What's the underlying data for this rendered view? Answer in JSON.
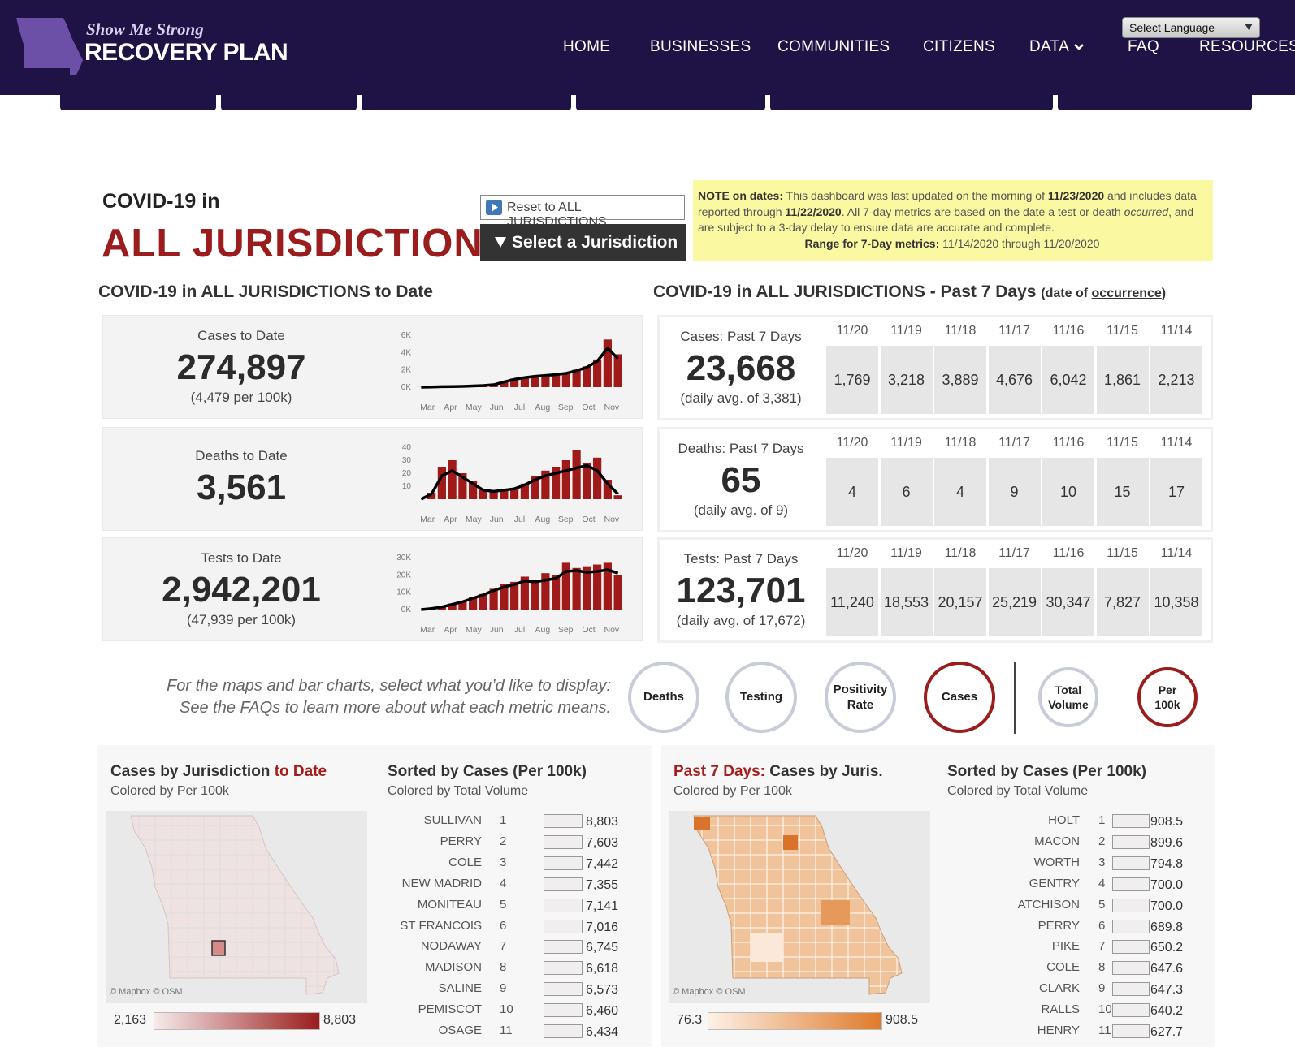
{
  "header": {
    "logo_script": "Show Me Strong",
    "logo_title": "RECOVERY PLAN",
    "nav": [
      "HOME",
      "BUSINESSES",
      "COMMUNITIES",
      "CITIZENS",
      "DATA",
      "FAQ",
      "RESOURCES"
    ],
    "language": "Select Language"
  },
  "title": {
    "prefix": "COVID-19 in",
    "name": "ALL JURISDICTIONS",
    "reset": "Reset to ALL JURISDICTIONS",
    "select": "Select a Jurisdiction"
  },
  "note": {
    "label": "NOTE on dates:",
    "text1": "This dashboard was last updated on the morning of",
    "date1": "11/23/2020",
    "text2": "and includes data reported through",
    "date2": "11/22/2020",
    "text3": ". All 7-day metrics are based on the date a test or death",
    "italic": "occurred",
    "text4": ", and are subject to a 3-day delay to ensure data are accurate and complete.",
    "range_label": "Range for 7-Day metrics:",
    "range": "11/14/2020 through 11/20/2020"
  },
  "to_date": {
    "heading": "COVID-19 in ALL JURISDICTIONS to Date",
    "cards": [
      {
        "label": "Cases to Date",
        "value": "274,897",
        "sub": "(4,479 per 100k)",
        "chart": {
          "type": "bar",
          "x_labels": [
            "Mar",
            "Apr",
            "May",
            "Jun",
            "Jul",
            "Aug",
            "Sep",
            "Oct",
            "Nov"
          ],
          "ylim": [
            0,
            6000
          ],
          "yticks": [
            {
              "value": 0,
              "label": "0K"
            },
            {
              "value": 2000,
              "label": "2K"
            },
            {
              "value": 4000,
              "label": "4K"
            },
            {
              "value": 6000,
              "label": "6K"
            }
          ],
          "values": [
            10,
            30,
            60,
            80,
            100,
            150,
            200,
            300,
            700,
            1000,
            1200,
            1300,
            1400,
            1500,
            1700,
            2000,
            2400,
            3200,
            5500,
            3800
          ],
          "average": [
            5,
            25,
            55,
            75,
            95,
            140,
            190,
            280,
            600,
            900,
            1100,
            1250,
            1350,
            1450,
            1600,
            1900,
            2300,
            3000,
            4500,
            3300
          ]
        }
      },
      {
        "label": "Deaths to Date",
        "value": "3,561",
        "chart": {
          "type": "bar",
          "x_labels": [
            "Mar",
            "Apr",
            "May",
            "Jun",
            "Jul",
            "Aug",
            "Sep",
            "Oct",
            "Nov"
          ],
          "ylim": [
            0,
            40
          ],
          "yticks": [
            10,
            20,
            30,
            40
          ],
          "values": [
            0,
            5,
            25,
            30,
            20,
            14,
            8,
            6,
            7,
            8,
            12,
            18,
            22,
            25,
            30,
            38,
            28,
            32,
            15,
            3
          ],
          "average": [
            0,
            4,
            18,
            22,
            17,
            12,
            7,
            6,
            7,
            8,
            11,
            15,
            18,
            20,
            22,
            24,
            26,
            22,
            12,
            4
          ]
        }
      },
      {
        "label": "Tests to Date",
        "value": "2,942,201",
        "sub": "(47,939 per 100k)",
        "chart": {
          "type": "bar",
          "x_labels": [
            "Mar",
            "Apr",
            "May",
            "Jun",
            "Jul",
            "Aug",
            "Sep",
            "Oct",
            "Nov"
          ],
          "ylim": [
            0,
            30000
          ],
          "yticks": [
            {
              "value": 0,
              "label": "0K"
            },
            {
              "value": 10000,
              "label": "10K"
            },
            {
              "value": 20000,
              "label": "20K"
            },
            {
              "value": 30000,
              "label": "30K"
            }
          ],
          "values": [
            0,
            800,
            2000,
            3500,
            5000,
            7000,
            9000,
            12000,
            15000,
            16000,
            19000,
            17000,
            21000,
            20000,
            27000,
            24000,
            25000,
            26000,
            27000,
            20000
          ],
          "average": [
            0,
            600,
            1500,
            3000,
            4500,
            6500,
            8500,
            11000,
            13000,
            14500,
            16500,
            16000,
            17000,
            18000,
            22000,
            22500,
            21500,
            22000,
            23000,
            21000
          ]
        }
      }
    ]
  },
  "past_7": {
    "heading": "COVID-19 in ALL JURISDICTIONS - Past 7 Days",
    "note_prefix": "(date of",
    "note_link": "occurrence",
    "note_suffix": ")",
    "cards": [
      {
        "label": "Cases: Past 7 Days",
        "value": "23,668",
        "sub": "(daily avg. of 3,381)",
        "dates": [
          "11/20",
          "11/19",
          "11/18",
          "11/17",
          "11/16",
          "11/15",
          "11/14"
        ],
        "values": [
          "1,769",
          "3,218",
          "3,889",
          "4,676",
          "6,042",
          "1,861",
          "2,213"
        ]
      },
      {
        "label": "Deaths: Past 7 Days",
        "value": "65",
        "sub": "(daily avg. of 9)",
        "dates": [
          "11/20",
          "11/19",
          "11/18",
          "11/17",
          "11/16",
          "11/15",
          "11/14"
        ],
        "values": [
          "4",
          "6",
          "4",
          "9",
          "10",
          "15",
          "17"
        ]
      },
      {
        "label": "Tests: Past 7 Days",
        "value": "123,701",
        "sub": "(daily avg. of 17,672)",
        "dates": [
          "11/20",
          "11/19",
          "11/18",
          "11/17",
          "11/16",
          "11/15",
          "11/14"
        ],
        "values": [
          "11,240",
          "18,553",
          "20,157",
          "25,219",
          "30,347",
          "7,827",
          "10,358"
        ]
      }
    ]
  },
  "selector": {
    "prompt": [
      "For the maps and bar charts, select what you’d like to display:",
      "See the FAQs to learn more about what each metric means."
    ],
    "metrics": [
      {
        "label": "Deaths",
        "selected": false
      },
      {
        "label": "Testing",
        "selected": false
      },
      {
        "label": "Positivity Rate",
        "selected": false
      },
      {
        "label": "Cases",
        "selected": true
      }
    ],
    "modes": [
      {
        "label": "Total Volume",
        "selected": false
      },
      {
        "label": "Per 100k",
        "selected": true
      }
    ]
  },
  "map_to_date": {
    "title": "Cases by Jurisdiction",
    "title_highlight": "to Date",
    "subtitle": "Colored by Per 100k",
    "attribution": "© Mapbox  © OSM",
    "legend_min": "2,163",
    "legend_max": "8,803"
  },
  "list_to_date": {
    "title": "Sorted by Cases (Per 100k)",
    "subtitle": "Colored by Total Volume",
    "rows": [
      [
        "SULLIVAN",
        "1",
        "8,803"
      ],
      [
        "PERRY",
        "2",
        "7,603"
      ],
      [
        "COLE",
        "3",
        "7,442"
      ],
      [
        "NEW MADRID",
        "4",
        "7,355"
      ],
      [
        "MONITEAU",
        "5",
        "7,141"
      ],
      [
        "ST FRANCOIS",
        "6",
        "7,016"
      ],
      [
        "NODAWAY",
        "7",
        "6,745"
      ],
      [
        "MADISON",
        "8",
        "6,618"
      ],
      [
        "SALINE",
        "9",
        "6,573"
      ],
      [
        "PEMISCOT",
        "10",
        "6,460"
      ],
      [
        "OSAGE",
        "11",
        "6,434"
      ]
    ]
  },
  "map_7day": {
    "title_highlight": "Past 7 Days:",
    "title": "Cases by Juris.",
    "subtitle": "Colored by Per 100k",
    "attribution": "© Mapbox  © OSM",
    "legend_min": "76.3",
    "legend_max": "908.5"
  },
  "list_7day": {
    "title": "Sorted by Cases (Per 100k)",
    "subtitle": "Colored by Total Volume",
    "rows": [
      [
        "HOLT",
        "1",
        "908.5"
      ],
      [
        "MACON",
        "2",
        "899.6"
      ],
      [
        "WORTH",
        "3",
        "794.8"
      ],
      [
        "GENTRY",
        "4",
        "700.0"
      ],
      [
        "ATCHISON",
        "5",
        "700.0"
      ],
      [
        "PERRY",
        "6",
        "689.8"
      ],
      [
        "PIKE",
        "7",
        "650.2"
      ],
      [
        "COLE",
        "8",
        "647.6"
      ],
      [
        "CLARK",
        "9",
        "647.3"
      ],
      [
        "RALLS",
        "10",
        "640.2"
      ],
      [
        "HENRY",
        "11",
        "627.7"
      ]
    ]
  }
}
